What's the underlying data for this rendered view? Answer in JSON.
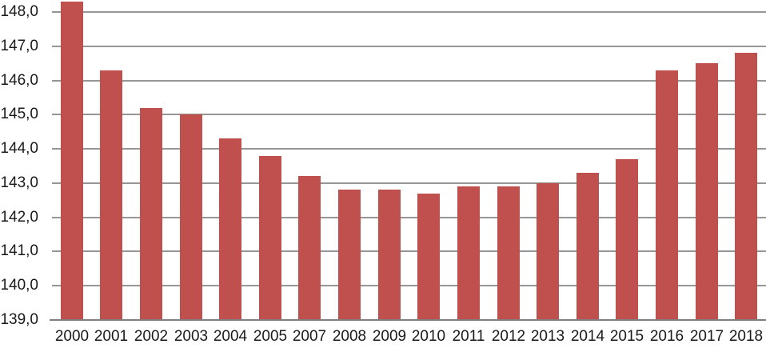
{
  "chart_data": {
    "type": "bar",
    "title": "",
    "xlabel": "",
    "ylabel": "",
    "categories": [
      "2000",
      "2001",
      "2002",
      "2003",
      "2004",
      "2005",
      "2007",
      "2008",
      "2009",
      "2010",
      "2011",
      "2012",
      "2013",
      "2014",
      "2015",
      "2016",
      "2017",
      "2018"
    ],
    "values": [
      148.3,
      146.3,
      145.2,
      145.0,
      144.3,
      143.8,
      143.2,
      142.8,
      142.8,
      142.7,
      142.9,
      142.9,
      143.0,
      143.3,
      143.7,
      146.3,
      146.5,
      146.8
    ],
    "ylim": [
      139.0,
      148.4
    ],
    "ytick_values": [
      148,
      147,
      146,
      145,
      144,
      143,
      142,
      141,
      140,
      139
    ],
    "ytick_labels": [
      "148,0",
      "147,0",
      "146,0",
      "145,0",
      "144,0",
      "143,0",
      "142,0",
      "141,0",
      "140,0",
      "139,0"
    ],
    "decimal_separator": ",",
    "grid": true,
    "legend": false,
    "colors": {
      "bar": "#c0504d",
      "gridline": "#969696",
      "axis_line": "#7f7f7f",
      "tick_text": "#1a1a1a",
      "background": "#ffffff"
    }
  }
}
